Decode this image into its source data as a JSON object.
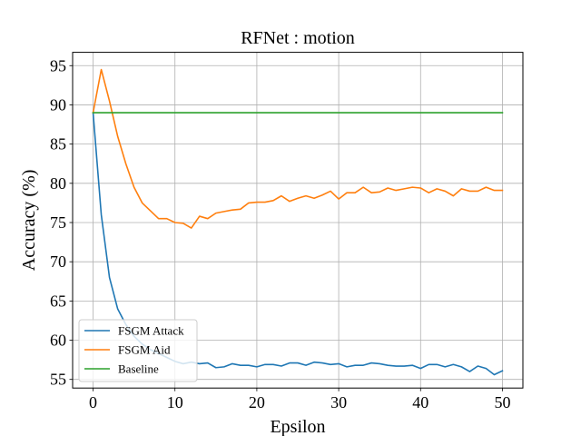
{
  "chart_data": {
    "type": "line",
    "title": "RFNet : motion",
    "xlabel": "Epsilon",
    "ylabel": "Accuracy (%)",
    "xlim": [
      -2.5,
      52.5
    ],
    "ylim": [
      53.9,
      96.7
    ],
    "xticks": [
      0,
      10,
      20,
      30,
      40,
      50
    ],
    "yticks": [
      55,
      60,
      65,
      70,
      75,
      80,
      85,
      90,
      95
    ],
    "grid": true,
    "legend_position": "lower-left",
    "x": [
      0,
      1,
      2,
      3,
      4,
      5,
      6,
      7,
      8,
      9,
      10,
      11,
      12,
      13,
      14,
      15,
      16,
      17,
      18,
      19,
      20,
      21,
      22,
      23,
      24,
      25,
      26,
      27,
      28,
      29,
      30,
      31,
      32,
      33,
      34,
      35,
      36,
      37,
      38,
      39,
      40,
      41,
      42,
      43,
      44,
      45,
      46,
      47,
      48,
      49,
      50
    ],
    "series": [
      {
        "name": "FSGM Attack",
        "color": "#1f77b4",
        "values": [
          89.0,
          76.0,
          68.0,
          64.0,
          62.0,
          60.5,
          59.5,
          58.8,
          58.3,
          57.8,
          57.3,
          57.0,
          57.2,
          57.0,
          57.1,
          56.5,
          56.6,
          57.0,
          56.8,
          56.8,
          56.6,
          56.9,
          56.9,
          56.7,
          57.1,
          57.1,
          56.8,
          57.2,
          57.1,
          56.9,
          57.0,
          56.6,
          56.8,
          56.8,
          57.1,
          57.0,
          56.8,
          56.7,
          56.7,
          56.8,
          56.4,
          56.9,
          56.9,
          56.6,
          56.9,
          56.6,
          56.0,
          56.7,
          56.4,
          55.6,
          56.1
        ]
      },
      {
        "name": "FSGM Aid",
        "color": "#ff7f0e",
        "values": [
          89.0,
          94.5,
          90.5,
          86.0,
          82.5,
          79.5,
          77.5,
          76.5,
          75.5,
          75.5,
          75.0,
          74.9,
          74.3,
          75.8,
          75.5,
          76.2,
          76.4,
          76.6,
          76.7,
          77.5,
          77.6,
          77.6,
          77.8,
          78.4,
          77.7,
          78.1,
          78.4,
          78.1,
          78.5,
          79.0,
          78.0,
          78.8,
          78.8,
          79.5,
          78.8,
          78.9,
          79.4,
          79.1,
          79.3,
          79.5,
          79.4,
          78.8,
          79.3,
          79.0,
          78.4,
          79.3,
          79.0,
          79.0,
          79.5,
          79.1,
          79.1
        ]
      },
      {
        "name": "Baseline",
        "color": "#2ca02c",
        "values": [
          89.0,
          89.0,
          89.0,
          89.0,
          89.0,
          89.0,
          89.0,
          89.0,
          89.0,
          89.0,
          89.0,
          89.0,
          89.0,
          89.0,
          89.0,
          89.0,
          89.0,
          89.0,
          89.0,
          89.0,
          89.0,
          89.0,
          89.0,
          89.0,
          89.0,
          89.0,
          89.0,
          89.0,
          89.0,
          89.0,
          89.0,
          89.0,
          89.0,
          89.0,
          89.0,
          89.0,
          89.0,
          89.0,
          89.0,
          89.0,
          89.0,
          89.0,
          89.0,
          89.0,
          89.0,
          89.0,
          89.0,
          89.0,
          89.0,
          89.0,
          89.0
        ]
      }
    ]
  }
}
